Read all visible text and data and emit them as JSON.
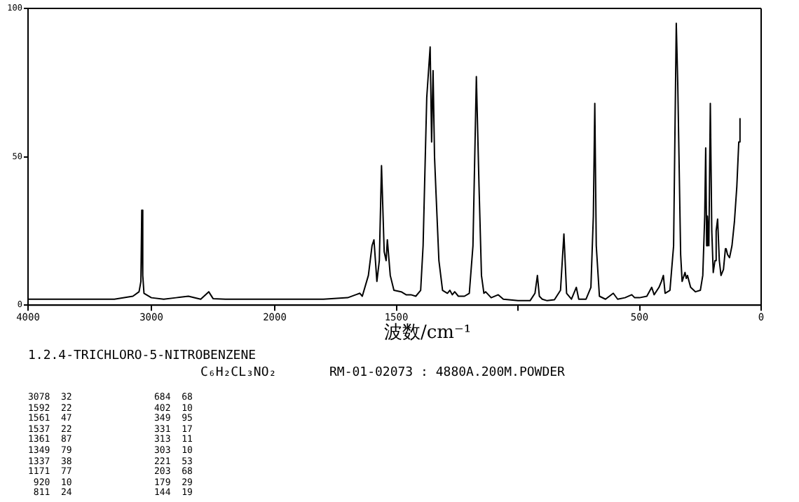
{
  "chart_data": [
    {
      "type": "line",
      "xlim": [
        4000,
        2000
      ],
      "xticks": [
        4000,
        3000,
        2000
      ],
      "ylim": [
        0,
        100
      ],
      "yticks": [
        0,
        50,
        100
      ],
      "grid": false,
      "marker": "none",
      "line_style": "solid",
      "series": [
        {
          "color": "#000000",
          "x": [
            4000,
            3800,
            3500,
            3300,
            3150,
            3100,
            3085,
            3078,
            3070,
            3060,
            3000,
            2900,
            2800,
            2700,
            2600,
            2535,
            2500,
            2400,
            2200,
            2000
          ],
          "values": [
            2,
            2,
            2,
            2,
            3,
            4.5,
            8,
            32,
            10,
            4,
            2.5,
            2,
            2.5,
            3,
            2,
            4.5,
            2.2,
            2,
            2,
            2
          ]
        }
      ],
      "annotations": [
        "1.2.4-TRICHLORO-5-NITROBENZENE",
        "C₆H₂CL₃NO₂",
        "RM-01-02073 : 4880A.200M.POWDER",
        "3078  32",
        "1592  22",
        "1561  47",
        "1537  22",
        "1361  87",
        "1349  79",
        "1337  38",
        "1171  77",
        " 920  10",
        " 811  24",
        "684  68",
        "402  10",
        "349  95",
        "331  17",
        "313  11",
        "303  10",
        "221  53",
        "203  68",
        "179  29",
        "144  19"
      ]
    },
    {
      "type": "line",
      "xlabel": "波数/cm⁻¹",
      "xlim": [
        2000,
        0
      ],
      "xticks": [
        1500,
        {
          "value": 1000,
          "label": null
        },
        500,
        0
      ],
      "ylim": [
        0,
        100
      ],
      "yticks": [
        0,
        50,
        100
      ],
      "tick_labels": "x",
      "grid": false,
      "marker": "none",
      "line_style": "solid",
      "series": [
        {
          "color": "#000000",
          "x": [
            2000,
            1800,
            1700,
            1650,
            1640,
            1615,
            1600,
            1592,
            1580,
            1570,
            1561,
            1550,
            1542,
            1537,
            1525,
            1510,
            1480,
            1460,
            1440,
            1420,
            1400,
            1390,
            1375,
            1361,
            1355,
            1349,
            1343,
            1337,
            1325,
            1310,
            1290,
            1280,
            1270,
            1260,
            1245,
            1220,
            1200,
            1185,
            1171,
            1160,
            1150,
            1140,
            1133,
            1110,
            1081,
            1060,
            1000,
            950,
            930,
            920,
            912,
            900,
            880,
            850,
            825,
            811,
            800,
            780,
            760,
            750,
            720,
            700,
            690,
            684,
            678,
            665,
            640,
            608,
            590,
            560,
            532,
            520,
            500,
            470,
            450,
            440,
            420,
            410,
            402,
            395,
            375,
            360,
            349,
            343,
            331,
            325,
            313,
            308,
            303,
            290,
            270,
            250,
            240,
            232,
            228,
            224,
            221,
            215,
            209,
            203,
            197,
            190,
            185,
            179,
            172,
            165,
            155,
            147,
            144,
            138,
            130,
            120,
            110,
            100,
            92,
            87
          ],
          "values": [
            2,
            2,
            2.5,
            4,
            3,
            10,
            20,
            22,
            8,
            15,
            47,
            18,
            15,
            22,
            10,
            5,
            4.5,
            3.5,
            3.5,
            3,
            5,
            20,
            70,
            87,
            55,
            79,
            50,
            38,
            15,
            5,
            4,
            5,
            3.5,
            4.5,
            3,
            3,
            4,
            20,
            77,
            40,
            10,
            4,
            4.5,
            2.5,
            3.5,
            2,
            1.5,
            1.5,
            4,
            10,
            3,
            2,
            1.5,
            1.8,
            5,
            24,
            4,
            2,
            6,
            2,
            2,
            6,
            30,
            68,
            20,
            3,
            2,
            4,
            2,
            2.5,
            3.5,
            2.5,
            2.5,
            3,
            6,
            3.5,
            6,
            8,
            10,
            4,
            5,
            20,
            95,
            75,
            17,
            8,
            11,
            9,
            10,
            6,
            4.5,
            5,
            10,
            30,
            53,
            20,
            30,
            20,
            68,
            25,
            11,
            15,
            25,
            29,
            15,
            10,
            12,
            19,
            19,
            17,
            16,
            20,
            28,
            40,
            55,
            63
          ]
        }
      ]
    }
  ]
}
